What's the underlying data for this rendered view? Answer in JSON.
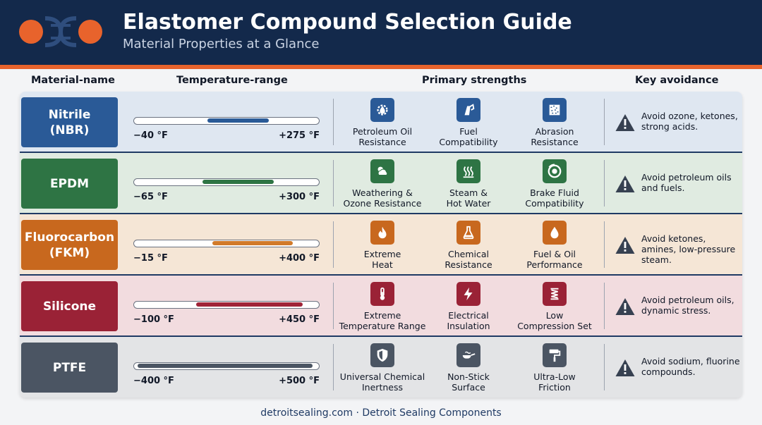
{
  "header": {
    "title": "Elastomer Compound Selection Guide",
    "subtitle": "Material Properties at a Glance",
    "logo": "DSC"
  },
  "columns": {
    "name": "Material-name",
    "temp": "Temperature-range",
    "strengths": "Primary strengths",
    "avoid": "Key avoidance"
  },
  "rows": [
    {
      "name": "Nitrile\n(NBR)",
      "color": "#2a5a97",
      "row_bg": "#dfe7f1",
      "bar_color": "#2a5a97",
      "range_min_f": -40,
      "range_max_f": 275,
      "temp_min": "−40 °F",
      "temp_max": "+275 °F",
      "strengths": [
        {
          "label": "Petroleum Oil\nResistance",
          "icon": "oil-drop-gear-icon"
        },
        {
          "label": "Fuel\nCompatibility",
          "icon": "fuel-pump-icon"
        },
        {
          "label": "Abrasion\nResistance",
          "icon": "abrasion-texture-icon"
        }
      ],
      "avoid": "Avoid ozone, ketones, strong acids."
    },
    {
      "name": "EPDM",
      "color": "#2e7444",
      "row_bg": "#e0ebe1",
      "bar_color": "#2e7444",
      "range_min_f": -65,
      "range_max_f": 300,
      "temp_min": "−65 °F",
      "temp_max": "+300 °F",
      "strengths": [
        {
          "label": "Weathering &\nOzone Resistance",
          "icon": "sun-cloud-icon"
        },
        {
          "label": "Steam &\nHot Water",
          "icon": "steam-icon"
        },
        {
          "label": "Brake Fluid\nCompatibility",
          "icon": "brake-disc-icon"
        }
      ],
      "avoid": "Avoid petroleum oils and fuels."
    },
    {
      "name": "Fluorocarbon\n(FKM)",
      "color": "#c8681e",
      "row_bg": "#f5e6d6",
      "bar_color": "#d17a2a",
      "range_min_f": -15,
      "range_max_f": 400,
      "temp_min": "−15 °F",
      "temp_max": "+400 °F",
      "strengths": [
        {
          "label": "Extreme\nHeat",
          "icon": "flame-icon"
        },
        {
          "label": "Chemical\nResistance",
          "icon": "flask-icon"
        },
        {
          "label": "Fuel & Oil\nPerformance",
          "icon": "oil-drop-icon"
        }
      ],
      "avoid": "Avoid ketones, amines, low-pressure steam."
    },
    {
      "name": "Silicone",
      "color": "#9a2236",
      "row_bg": "#f2dcdf",
      "bar_color": "#a02438",
      "range_min_f": -100,
      "range_max_f": 450,
      "temp_min": "−100 °F",
      "temp_max": "+450 °F",
      "strengths": [
        {
          "label": "Extreme\nTemperature Range",
          "icon": "thermometer-icon"
        },
        {
          "label": "Electrical\nInsulation",
          "icon": "lightning-icon"
        },
        {
          "label": "Low\nCompression Set",
          "icon": "spring-icon"
        }
      ],
      "avoid": "Avoid petroleum oils, dynamic stress."
    },
    {
      "name": "PTFE",
      "color": "#4b5563",
      "row_bg": "#e3e4e6",
      "bar_color": "#4b5563",
      "range_min_f": -400,
      "range_max_f": 500,
      "temp_min": "−400 °F",
      "temp_max": "+500 °F",
      "strengths": [
        {
          "label": "Universal Chemical\nInertness",
          "icon": "shield-icon"
        },
        {
          "label": "Non-Stick\nSurface",
          "icon": "non-stick-pan-icon"
        },
        {
          "label": "Ultra-Low\nFriction",
          "icon": "paint-roller-icon"
        }
      ],
      "avoid": "Avoid sodium, fluorine compounds."
    }
  ],
  "footer": "detroitsealing.com · Detroit Sealing Components"
}
